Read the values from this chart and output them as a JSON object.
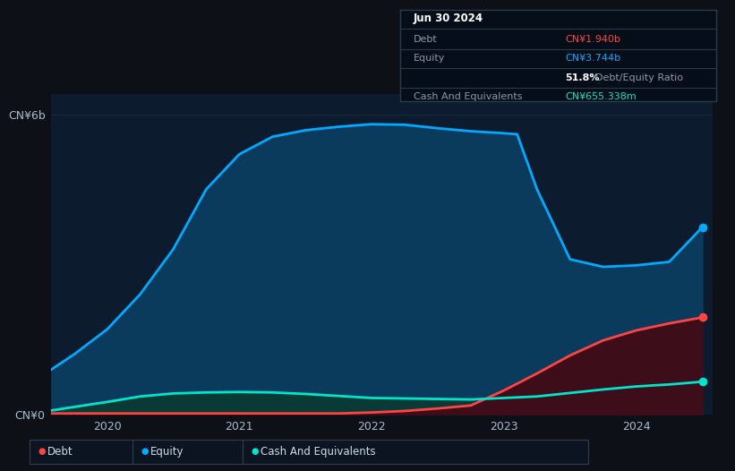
{
  "background_color": "#0d1117",
  "plot_bg_color": "#0d1b2e",
  "title_box": {
    "date": "Jun 30 2024",
    "debt_label": "Debt",
    "debt_value": "CN¥1.940b",
    "debt_color": "#ff4444",
    "equity_label": "Equity",
    "equity_value": "CN¥3.744b",
    "equity_color": "#00aaff",
    "ratio_bold": "51.8%",
    "ratio_text": "Debt/Equity Ratio",
    "cash_label": "Cash And Equivalents",
    "cash_value": "CN¥655.338m",
    "cash_color": "#00e5cc"
  },
  "ylabel_top": "CN¥6b",
  "ylabel_bot": "CN¥0",
  "x_ticks": [
    2020,
    2021,
    2022,
    2023,
    2024
  ],
  "equity_x": [
    2019.58,
    2019.75,
    2020.0,
    2020.25,
    2020.5,
    2020.75,
    2021.0,
    2021.25,
    2021.5,
    2021.75,
    2022.0,
    2022.25,
    2022.5,
    2022.75,
    2023.0,
    2023.1,
    2023.25,
    2023.5,
    2023.75,
    2024.0,
    2024.25,
    2024.5
  ],
  "equity_y": [
    0.9,
    1.2,
    1.7,
    2.4,
    3.3,
    4.5,
    5.2,
    5.55,
    5.68,
    5.75,
    5.8,
    5.79,
    5.72,
    5.66,
    5.62,
    5.6,
    4.5,
    3.1,
    2.95,
    2.98,
    3.05,
    3.744
  ],
  "debt_x": [
    2019.58,
    2019.75,
    2020.0,
    2020.25,
    2020.5,
    2020.75,
    2021.0,
    2021.25,
    2021.5,
    2021.75,
    2022.0,
    2022.25,
    2022.5,
    2022.75,
    2023.0,
    2023.25,
    2023.5,
    2023.75,
    2024.0,
    2024.25,
    2024.5
  ],
  "debt_y": [
    0.02,
    0.02,
    0.02,
    0.02,
    0.02,
    0.02,
    0.02,
    0.02,
    0.02,
    0.02,
    0.04,
    0.07,
    0.12,
    0.18,
    0.48,
    0.82,
    1.18,
    1.48,
    1.68,
    1.82,
    1.94
  ],
  "cash_x": [
    2019.58,
    2019.75,
    2020.0,
    2020.25,
    2020.5,
    2020.75,
    2021.0,
    2021.25,
    2021.5,
    2021.75,
    2022.0,
    2022.25,
    2022.5,
    2022.75,
    2023.0,
    2023.25,
    2023.5,
    2023.75,
    2024.0,
    2024.25,
    2024.5
  ],
  "cash_y": [
    0.08,
    0.15,
    0.25,
    0.36,
    0.42,
    0.44,
    0.45,
    0.44,
    0.41,
    0.37,
    0.33,
    0.32,
    0.31,
    0.3,
    0.33,
    0.36,
    0.43,
    0.5,
    0.56,
    0.6,
    0.655
  ],
  "equity_line_color": "#00aaff",
  "equity_fill_color": "#0a3a5c",
  "debt_line_color": "#ff4444",
  "debt_fill_color": "#3d0e1a",
  "cash_line_color": "#00e5cc",
  "cash_fill_color": "#0a3a36",
  "grid_color": "#1a2a3a",
  "legend_items": [
    "Debt",
    "Equity",
    "Cash And Equivalents"
  ],
  "legend_colors": [
    "#ff4444",
    "#00aaff",
    "#00e5cc"
  ],
  "ylim": [
    0,
    6.4
  ],
  "xlim": [
    2019.58,
    2024.58
  ]
}
